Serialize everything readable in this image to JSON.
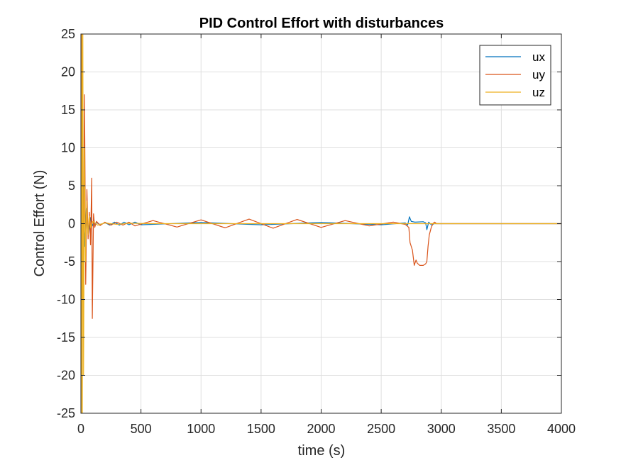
{
  "chart_data": {
    "type": "line",
    "title": "PID Control Effort  with disturbances",
    "xlabel": "time (s)",
    "ylabel": "Control Effort (N)",
    "xlim": [
      0,
      4000
    ],
    "ylim": [
      -25,
      25
    ],
    "xticks": [
      0,
      500,
      1000,
      1500,
      2000,
      2500,
      3000,
      3500,
      4000
    ],
    "yticks": [
      -25,
      -20,
      -15,
      -10,
      -5,
      0,
      5,
      10,
      15,
      20,
      25
    ],
    "xtick_labels": [
      "0",
      "500",
      "1000",
      "1500",
      "2000",
      "2500",
      "3000",
      "3500",
      "4000"
    ],
    "ytick_labels": [
      "-25",
      "-20",
      "-15",
      "-10",
      "-5",
      "0",
      "5",
      "10",
      "15",
      "20",
      "25"
    ],
    "grid": true,
    "legend_position": "top-right",
    "series": [
      {
        "name": "ux",
        "color": "#0072BD",
        "points": [
          [
            0,
            0
          ],
          [
            10,
            -6
          ],
          [
            20,
            5
          ],
          [
            30,
            -3
          ],
          [
            45,
            2
          ],
          [
            60,
            -1.5
          ],
          [
            80,
            0.8
          ],
          [
            100,
            -0.3
          ],
          [
            130,
            0.2
          ],
          [
            160,
            -0.2
          ],
          [
            200,
            0.15
          ],
          [
            240,
            -0.2
          ],
          [
            280,
            0.2
          ],
          [
            320,
            -0.2
          ],
          [
            360,
            0.2
          ],
          [
            400,
            -0.15
          ],
          [
            450,
            0.2
          ],
          [
            500,
            -0.15
          ],
          [
            1000,
            0.15
          ],
          [
            1500,
            -0.15
          ],
          [
            2000,
            0.15
          ],
          [
            2500,
            -0.15
          ],
          [
            2700,
            0.1
          ],
          [
            2720,
            -0.2
          ],
          [
            2735,
            0.9
          ],
          [
            2750,
            0.3
          ],
          [
            2780,
            0.2
          ],
          [
            2850,
            0.25
          ],
          [
            2870,
            0.1
          ],
          [
            2880,
            -0.8
          ],
          [
            2895,
            0.2
          ],
          [
            2920,
            -0.2
          ],
          [
            2940,
            0
          ],
          [
            3000,
            0
          ],
          [
            4000,
            0
          ]
        ]
      },
      {
        "name": "uy",
        "color": "#D95319",
        "points": [
          [
            0,
            0
          ],
          [
            5,
            25
          ],
          [
            12,
            10
          ],
          [
            20,
            -10
          ],
          [
            30,
            17
          ],
          [
            40,
            -8
          ],
          [
            50,
            4.5
          ],
          [
            60,
            -2
          ],
          [
            70,
            1.5
          ],
          [
            80,
            -2.8
          ],
          [
            90,
            6
          ],
          [
            95,
            -12.5
          ],
          [
            105,
            1.3
          ],
          [
            115,
            -0.5
          ],
          [
            130,
            0.3
          ],
          [
            160,
            -0.25
          ],
          [
            200,
            0.2
          ],
          [
            250,
            -0.2
          ],
          [
            300,
            0.2
          ],
          [
            350,
            -0.2
          ],
          [
            400,
            0.2
          ],
          [
            450,
            -0.3
          ],
          [
            600,
            0.4
          ],
          [
            800,
            -0.45
          ],
          [
            1000,
            0.5
          ],
          [
            1200,
            -0.55
          ],
          [
            1400,
            0.6
          ],
          [
            1600,
            -0.6
          ],
          [
            1800,
            0.55
          ],
          [
            2000,
            -0.5
          ],
          [
            2200,
            0.4
          ],
          [
            2400,
            -0.3
          ],
          [
            2600,
            0.2
          ],
          [
            2700,
            -0.1
          ],
          [
            2730,
            -0.5
          ],
          [
            2740,
            -2.5
          ],
          [
            2760,
            -3.5
          ],
          [
            2775,
            -5.5
          ],
          [
            2790,
            -4.8
          ],
          [
            2800,
            -5.2
          ],
          [
            2820,
            -5.5
          ],
          [
            2850,
            -5.5
          ],
          [
            2870,
            -5.3
          ],
          [
            2880,
            -5
          ],
          [
            2890,
            -3
          ],
          [
            2900,
            -1.5
          ],
          [
            2915,
            -0.6
          ],
          [
            2930,
            0
          ],
          [
            2945,
            0.2
          ],
          [
            2960,
            0
          ],
          [
            3000,
            0
          ],
          [
            4000,
            0
          ]
        ]
      },
      {
        "name": "uz",
        "color": "#EDB120",
        "points": [
          [
            0,
            0
          ],
          [
            4,
            -25
          ],
          [
            8,
            25
          ],
          [
            12,
            -25
          ],
          [
            16,
            25
          ],
          [
            22,
            -20
          ],
          [
            30,
            10
          ],
          [
            38,
            -5
          ],
          [
            48,
            3
          ],
          [
            58,
            -1.5
          ],
          [
            70,
            1
          ],
          [
            80,
            -0.5
          ],
          [
            100,
            0.3
          ],
          [
            140,
            -0.2
          ],
          [
            200,
            0.1
          ],
          [
            300,
            -0.1
          ],
          [
            400,
            0.05
          ],
          [
            600,
            0
          ],
          [
            4000,
            0
          ]
        ]
      }
    ]
  }
}
